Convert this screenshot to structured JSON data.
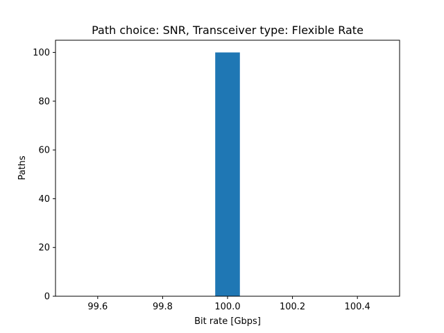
{
  "chart_data": {
    "type": "bar",
    "title": "Path choice: SNR, Transceiver type: Flexible Rate",
    "xlabel": "Bit rate [Gbps]",
    "ylabel": "Paths",
    "xlim": [
      99.47,
      100.53
    ],
    "ylim": [
      0,
      105
    ],
    "x_ticks": [
      "99.6",
      "99.8",
      "100.0",
      "100.2",
      "100.4"
    ],
    "y_ticks": [
      "0",
      "20",
      "40",
      "60",
      "80",
      "100"
    ],
    "bars": [
      {
        "x_start": 99.962,
        "x_end": 100.038,
        "value": 100
      }
    ],
    "bar_color": "#1f77b4",
    "grid": false,
    "legend": "none"
  }
}
